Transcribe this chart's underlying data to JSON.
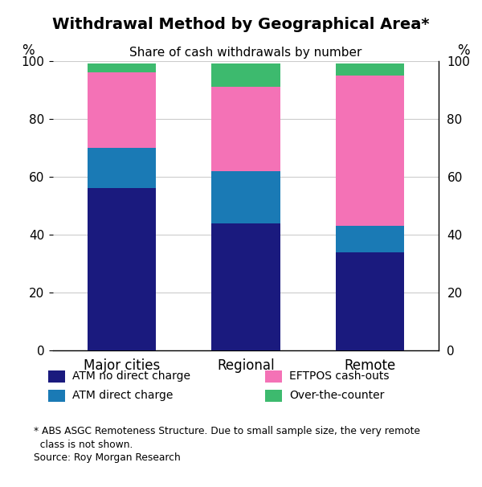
{
  "title": "Withdrawal Method by Geographical Area*",
  "subtitle": "Share of cash withdrawals by number",
  "categories": [
    "Major cities",
    "Regional",
    "Remote"
  ],
  "series": {
    "ATM no direct charge": [
      56,
      44,
      34
    ],
    "ATM direct charge": [
      14,
      18,
      9
    ],
    "EFTPOS cash-outs": [
      26,
      29,
      52
    ],
    "Over-the-counter": [
      3,
      8,
      4
    ]
  },
  "colors": {
    "ATM no direct charge": "#1a1a7e",
    "ATM direct charge": "#1a7ab5",
    "EFTPOS cash-outs": "#f472b6",
    "Over-the-counter": "#3dba6e"
  },
  "ylim": [
    0,
    100
  ],
  "yticks": [
    0,
    20,
    40,
    60,
    80,
    100
  ],
  "ylabel": "%",
  "bar_width": 0.55,
  "footnote1": "* ABS ASGC Remoteness Structure. Due to small sample size, the very remote",
  "footnote2": "  class is not shown.",
  "footnote3": "Source: Roy Morgan Research",
  "legend_labels_col1": [
    "ATM no direct charge",
    "ATM direct charge"
  ],
  "legend_labels_col2": [
    "EFTPOS cash-outs",
    "Over-the-counter"
  ],
  "background_color": "#ffffff"
}
